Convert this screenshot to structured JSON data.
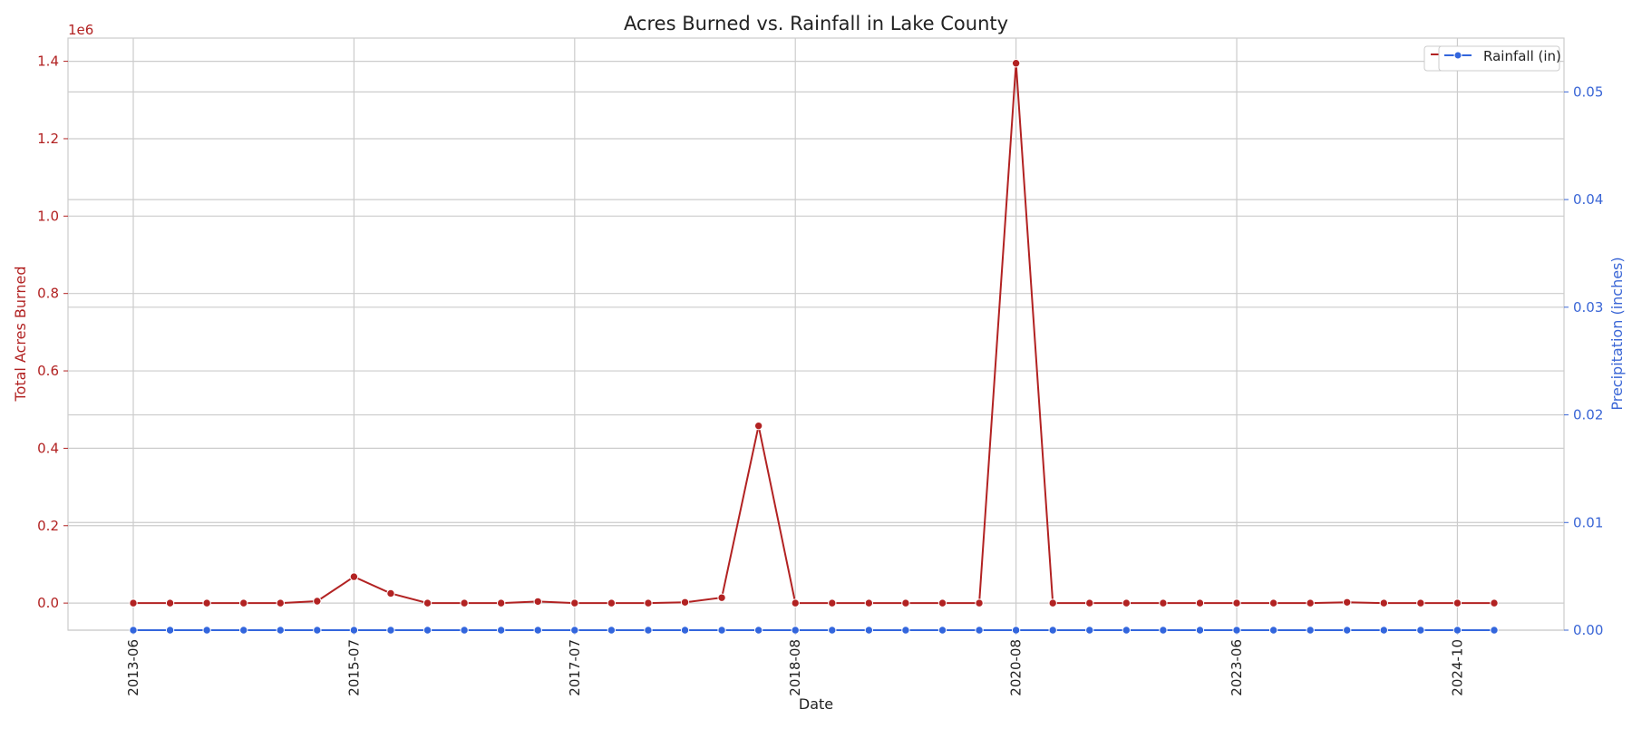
{
  "chart_data": {
    "type": "line",
    "title": "Acres Burned vs. Rainfall in Lake County",
    "xlabel": "Date",
    "ylabel_left": "Total Acres Burned",
    "ylabel_right": "Precipitation (inches)",
    "left_axis_offset_label": "1e6",
    "left_ylim": [
      -70000,
      1460000
    ],
    "left_ticks": [
      0.0,
      0.2,
      0.4,
      0.6,
      0.8,
      1.0,
      1.2,
      1.4
    ],
    "left_tick_labels": [
      "0.0",
      "0.2",
      "0.4",
      "0.6",
      "0.8",
      "1.0",
      "1.2",
      "1.4"
    ],
    "right_ylim": [
      0.0,
      0.055
    ],
    "right_ticks": [
      0.0,
      0.01,
      0.02,
      0.03,
      0.04,
      0.05
    ],
    "right_tick_labels": [
      "0.00",
      "0.01",
      "0.02",
      "0.03",
      "0.04",
      "0.05"
    ],
    "x_tick_labels": [
      "2013-06",
      "2015-07",
      "2017-07",
      "2018-08",
      "2020-08",
      "2023-06",
      "2024-10"
    ],
    "x_tick_indices": [
      0,
      6,
      12,
      18,
      24,
      30,
      36
    ],
    "grid": true,
    "legend": {
      "position": "top-right",
      "entries": [
        "Rainfall (in)"
      ]
    },
    "series": [
      {
        "axis": "left",
        "color": "#b22222",
        "values": [
          0,
          0,
          0,
          0,
          0,
          5000,
          68000,
          25000,
          0,
          0,
          0,
          4000,
          0,
          0,
          0,
          2000,
          14000,
          458000,
          0,
          0,
          0,
          0,
          0,
          0,
          1395000,
          0,
          0,
          0,
          0,
          0,
          0,
          0,
          0,
          2000,
          0,
          0,
          0,
          0
        ]
      },
      {
        "name": "Rainfall (in)",
        "axis": "right",
        "color": "#3366dd",
        "values": [
          0,
          0,
          0,
          0,
          0,
          0,
          0,
          0,
          0,
          0,
          0,
          0,
          0,
          0,
          0,
          0,
          0,
          0,
          0,
          0,
          0,
          0,
          0,
          0,
          0,
          0,
          0,
          0,
          0,
          0,
          0,
          0,
          0,
          0,
          0,
          0,
          0,
          0
        ]
      }
    ],
    "colors": {
      "left_axis": "#b22222",
      "right_axis": "#3a66d6",
      "text": "#222222"
    }
  }
}
